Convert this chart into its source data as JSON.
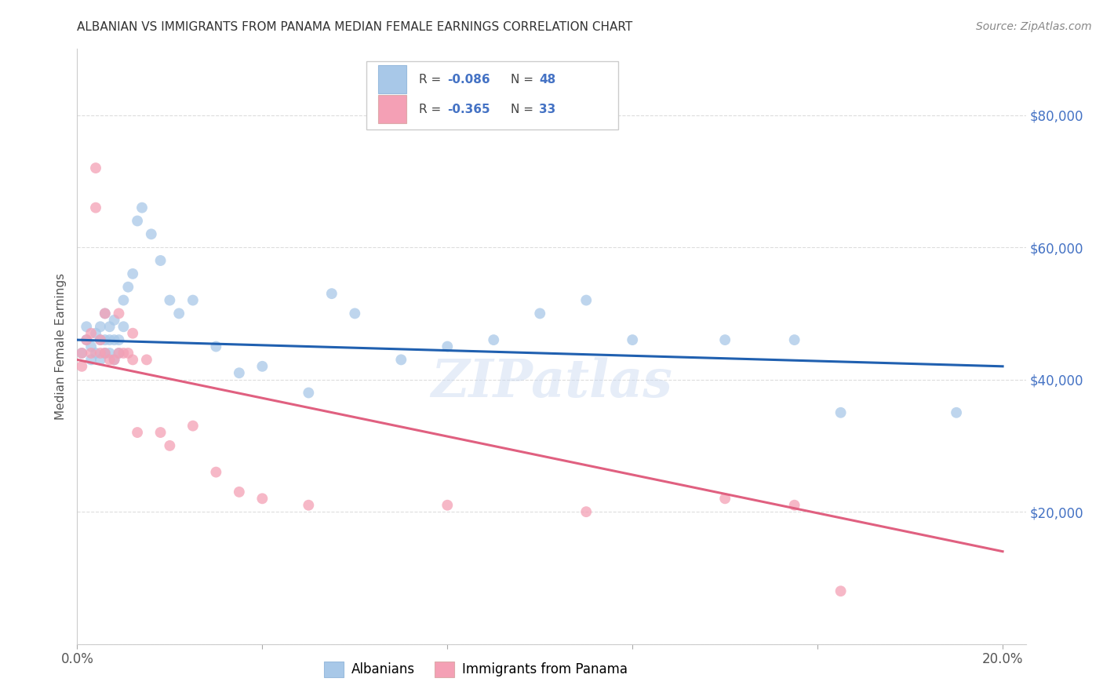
{
  "title": "ALBANIAN VS IMMIGRANTS FROM PANAMA MEDIAN FEMALE EARNINGS CORRELATION CHART",
  "source": "Source: ZipAtlas.com",
  "ylabel": "Median Female Earnings",
  "watermark": "ZIPatlas",
  "xlim": [
    0.0,
    0.205
  ],
  "ylim": [
    0,
    90000
  ],
  "xticks": [
    0.0,
    0.04,
    0.08,
    0.12,
    0.16,
    0.2
  ],
  "xticklabels": [
    "0.0%",
    "",
    "",
    "",
    "",
    "20.0%"
  ],
  "yticks": [
    0,
    20000,
    40000,
    60000,
    80000
  ],
  "right_yticklabels": [
    "",
    "$20,000",
    "$40,000",
    "$60,000",
    "$80,000"
  ],
  "legend_label1": "Albanians",
  "legend_label2": "Immigrants from Panama",
  "R1": "-0.086",
  "N1": "48",
  "R2": "-0.365",
  "N2": "33",
  "color_blue": "#a8c8e8",
  "color_pink": "#f4a0b5",
  "line_blue": "#2060b0",
  "line_pink": "#e06080",
  "albanians_x": [
    0.001,
    0.002,
    0.002,
    0.003,
    0.003,
    0.004,
    0.004,
    0.005,
    0.005,
    0.005,
    0.006,
    0.006,
    0.006,
    0.007,
    0.007,
    0.007,
    0.008,
    0.008,
    0.008,
    0.009,
    0.009,
    0.01,
    0.01,
    0.011,
    0.012,
    0.013,
    0.014,
    0.016,
    0.018,
    0.02,
    0.022,
    0.025,
    0.03,
    0.035,
    0.04,
    0.05,
    0.055,
    0.06,
    0.07,
    0.08,
    0.09,
    0.1,
    0.11,
    0.12,
    0.14,
    0.155,
    0.165,
    0.19
  ],
  "albanians_y": [
    44000,
    46000,
    48000,
    43000,
    45000,
    44000,
    47000,
    43000,
    46000,
    48000,
    44000,
    46000,
    50000,
    44000,
    46000,
    48000,
    43000,
    46000,
    49000,
    44000,
    46000,
    52000,
    48000,
    54000,
    56000,
    64000,
    66000,
    62000,
    58000,
    52000,
    50000,
    52000,
    45000,
    41000,
    42000,
    38000,
    53000,
    50000,
    43000,
    45000,
    46000,
    50000,
    52000,
    46000,
    46000,
    46000,
    35000,
    35000
  ],
  "panama_x": [
    0.001,
    0.001,
    0.002,
    0.003,
    0.003,
    0.004,
    0.004,
    0.005,
    0.005,
    0.006,
    0.006,
    0.007,
    0.008,
    0.009,
    0.009,
    0.01,
    0.011,
    0.012,
    0.012,
    0.013,
    0.015,
    0.018,
    0.02,
    0.025,
    0.03,
    0.035,
    0.04,
    0.05,
    0.08,
    0.11,
    0.14,
    0.155,
    0.165
  ],
  "panama_y": [
    42000,
    44000,
    46000,
    44000,
    47000,
    66000,
    72000,
    44000,
    46000,
    50000,
    44000,
    43000,
    43000,
    44000,
    50000,
    44000,
    44000,
    43000,
    47000,
    32000,
    43000,
    32000,
    30000,
    33000,
    26000,
    23000,
    22000,
    21000,
    21000,
    20000,
    22000,
    21000,
    8000
  ],
  "blue_line_x0": 0.0,
  "blue_line_y0": 46000,
  "blue_line_x1": 0.2,
  "blue_line_y1": 42000,
  "pink_line_x0": 0.0,
  "pink_line_y0": 43000,
  "pink_line_x1": 0.2,
  "pink_line_y1": 14000
}
